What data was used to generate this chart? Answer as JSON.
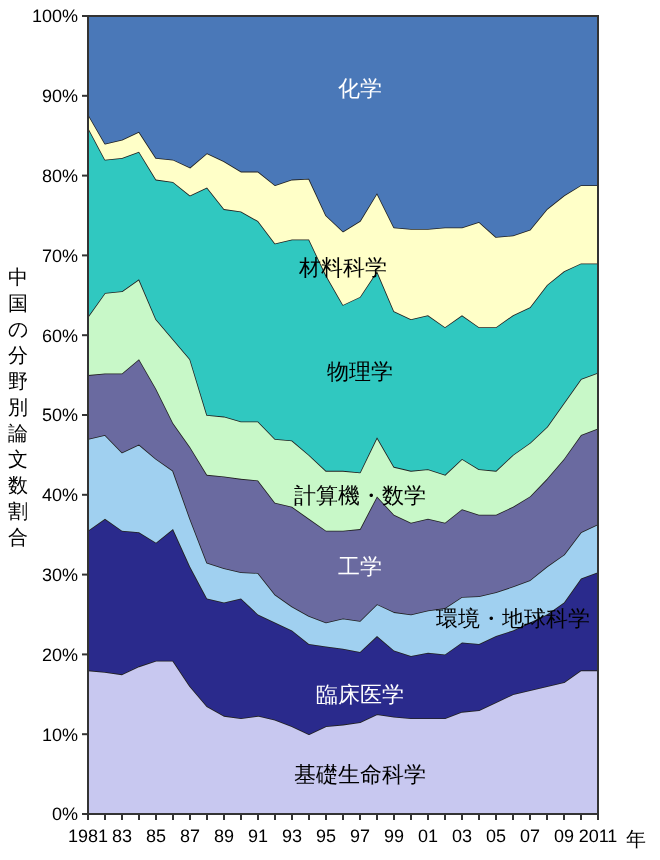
{
  "chart_data": {
    "type": "area",
    "stacked": true,
    "ylabel": "中国の分野別論文数割合",
    "xlabel": "年",
    "categories": [
      "1981",
      null,
      "83",
      null,
      "85",
      null,
      "87",
      null,
      "89",
      null,
      "91",
      null,
      "93",
      null,
      "95",
      null,
      "97",
      null,
      "99",
      null,
      "01",
      null,
      "03",
      null,
      "05",
      null,
      "07",
      null,
      "09",
      null,
      "2011"
    ],
    "ylim": [
      0,
      100
    ],
    "yticks": [
      {
        "value": 0,
        "label": "0%"
      },
      {
        "value": 10,
        "label": "10%"
      },
      {
        "value": 20,
        "label": "20%"
      },
      {
        "value": 30,
        "label": "30%"
      },
      {
        "value": 40,
        "label": "40%"
      },
      {
        "value": 50,
        "label": "50%"
      },
      {
        "value": 60,
        "label": "60%"
      },
      {
        "value": 70,
        "label": "70%"
      },
      {
        "value": 80,
        "label": "80%"
      },
      {
        "value": 90,
        "label": "90%"
      },
      {
        "value": 100,
        "label": "100%"
      }
    ],
    "series": [
      {
        "name": "基礎生命科学",
        "color": "#c8c8f0",
        "values": [
          18,
          17.8,
          17.5,
          18.5,
          19.2,
          19.2,
          16,
          13.5,
          12.3,
          12,
          12.3,
          11.8,
          11,
          10,
          11,
          11.2,
          11.5,
          12.5,
          12.2,
          12,
          12,
          12,
          12.8,
          13,
          14,
          15,
          15.5,
          16,
          16.5,
          18,
          18
        ]
      },
      {
        "name": "臨床医学",
        "color": "#2a2a8c",
        "values": [
          17.5,
          19.2,
          18,
          16.8,
          14.8,
          16.5,
          15,
          13.5,
          14.2,
          15,
          12.7,
          12.2,
          12,
          11.3,
          10,
          9.5,
          8.8,
          9.8,
          8.3,
          7.8,
          8.2,
          8,
          8.7,
          8.3,
          8.3,
          8,
          8.5,
          9,
          10,
          11.5,
          12.3
        ]
      },
      {
        "name": "環境・地球科学",
        "color": "#a0d0f0",
        "values": [
          11.5,
          10.5,
          9.8,
          11,
          10.5,
          7.3,
          6,
          4.5,
          4.3,
          3.3,
          5.2,
          3.5,
          3,
          3.5,
          3,
          3.8,
          3.9,
          4,
          4.8,
          5.2,
          5.3,
          5.8,
          5.7,
          6,
          5.5,
          5.5,
          5.3,
          6,
          6,
          5.8,
          6
        ]
      },
      {
        "name": "工学",
        "color": "#6a6aa0",
        "values": [
          8,
          7.7,
          9.9,
          10.7,
          8.8,
          6,
          9,
          11,
          11.5,
          11.7,
          11.6,
          11.5,
          12.5,
          12.2,
          11.5,
          11,
          11.5,
          13.5,
          12.2,
          11.5,
          11.5,
          10.7,
          11,
          10.2,
          9.7,
          10,
          10.5,
          11,
          12,
          12.2,
          12
        ]
      },
      {
        "name": "計算機・数学",
        "color": "#c8f8c8",
        "values": [
          7.3,
          10.1,
          10.3,
          10,
          8.7,
          10.5,
          11,
          7.5,
          7.5,
          7.2,
          7.4,
          8,
          8.3,
          8,
          7.5,
          7.5,
          7.1,
          7.4,
          6,
          6.5,
          6.2,
          6,
          6.3,
          5.7,
          5.5,
          6.5,
          6.7,
          6.5,
          7,
          7,
          7
        ]
      },
      {
        "name": "物理学",
        "color": "#30c8c0",
        "values": [
          23.7,
          16.7,
          16.7,
          16,
          17.5,
          19.7,
          20.5,
          28.5,
          26,
          26.3,
          25.1,
          24.5,
          25.2,
          27,
          24.5,
          20.8,
          22,
          20.8,
          19.5,
          19,
          19.3,
          18.5,
          18,
          17.8,
          18,
          17.5,
          17,
          17.8,
          16.5,
          14.5,
          13.7
        ]
      },
      {
        "name": "材料科学",
        "color": "#ffffc8",
        "values": [
          1.7,
          2,
          2.3,
          2.5,
          2.7,
          2.8,
          3.5,
          4.3,
          6,
          5,
          6.2,
          7.3,
          7.5,
          7.6,
          7.5,
          9.2,
          9.5,
          9.8,
          10.5,
          11.3,
          10.8,
          12.5,
          11,
          13.2,
          11.3,
          10,
          9.7,
          9.5,
          9.5,
          9.8,
          9.8
        ]
      },
      {
        "name": "化学",
        "color": "#4a78b8",
        "values": [
          12.3,
          16,
          15.5,
          14.5,
          17.8,
          18,
          19,
          17.2,
          18.2,
          19.5,
          19.5,
          21.2,
          20.5,
          20.4,
          25,
          27,
          25.7,
          22.2,
          26.5,
          26.7,
          26.7,
          26.5,
          26.5,
          25.8,
          27.7,
          27.5,
          26.8,
          24.2,
          22.5,
          21.2,
          21.2
        ]
      }
    ]
  }
}
